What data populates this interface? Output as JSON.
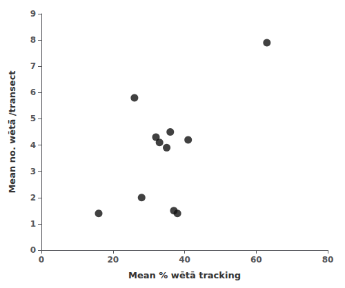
{
  "chart_data": {
    "type": "scatter",
    "x": [
      16,
      26,
      28,
      32,
      33,
      35,
      36,
      37,
      38,
      41,
      63
    ],
    "y": [
      1.4,
      5.8,
      2.0,
      4.3,
      4.1,
      3.9,
      4.5,
      1.5,
      1.4,
      4.2,
      7.9
    ],
    "xlabel": "Mean % wētā tracking",
    "ylabel": "Mean no. wētā̄ /transect",
    "xlim": [
      0,
      80
    ],
    "ylim": [
      0,
      9
    ],
    "xticks": [
      0,
      20,
      40,
      60,
      80
    ],
    "yticks": [
      0,
      1,
      2,
      3,
      4,
      5,
      6,
      7,
      8,
      9
    ],
    "color": "#111111",
    "grid": false
  }
}
